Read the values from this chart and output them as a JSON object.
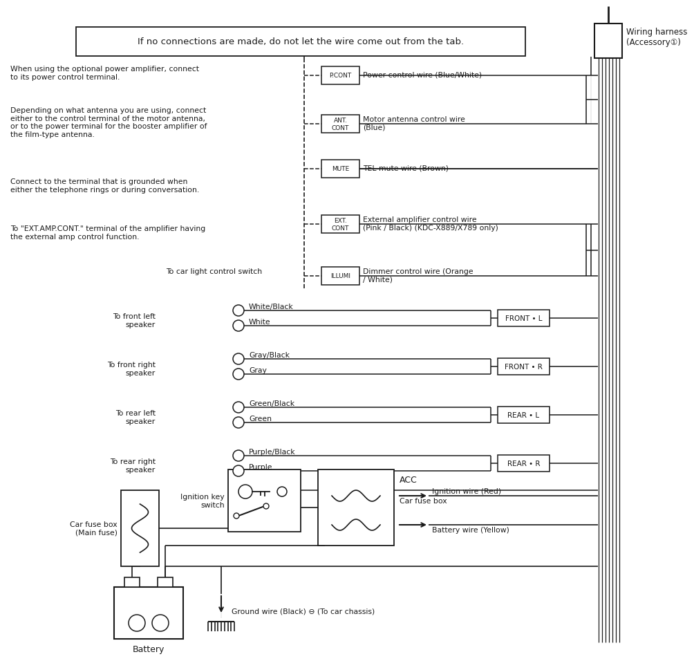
{
  "bg_color": "#ffffff",
  "text_color": "#1a1a1a",
  "line_color": "#1a1a1a",
  "fig_width": 9.6,
  "fig_height": 9.5,
  "notice_box": "If no connections are made, do not let the wire come out from the tab.",
  "left_notes": [
    "When using the optional power amplifier, connect\nto its power control terminal.",
    "Depending on what antenna you are using, connect\neither to the control terminal of the motor antenna,\nor to the power terminal for the booster amplifier of\nthe film-type antenna.",
    "Connect to the terminal that is grounded when\neither the telephone rings or during conversation.",
    "To \"EXT.AMP.CONT.\" terminal of the amplifier having\nthe external amp control function.",
    "To car light control switch"
  ],
  "ctrl_labels": [
    "P.CONT",
    "ANT.\nCONT",
    "MUTE",
    "EXT.\nCONT",
    "ILLUMI"
  ],
  "ctrl_wires": [
    "Power control wire (Blue/White)",
    "Motor antenna control wire\n(Blue)",
    "TEL mute wire (Brown)",
    "External amplifier control wire\n(Pink / Black) (KDC-X889/X789 only)",
    "Dimmer control wire (Orange\n/ White)"
  ],
  "spk_labels": [
    "To front left\nspeaker",
    "To front right\nspeaker",
    "To rear left\nspeaker",
    "To rear right\nspeaker"
  ],
  "spk_neg": [
    "White/Black",
    "Gray/Black",
    "Green/Black",
    "Purple/Black"
  ],
  "spk_pos": [
    "White",
    "Gray",
    "Green",
    "Purple"
  ],
  "spk_conn": [
    "FRONT • L",
    "FRONT • R",
    "REAR • L",
    "REAR • R"
  ],
  "bot": {
    "ign_key": "Ignition key\nswitch",
    "fuse_main": "Car fuse box\n(Main fuse)",
    "fuse_acc": "Car fuse box",
    "acc": "ACC",
    "ign_wire": "Ignition wire (Red)",
    "bat_wire": "Battery wire (Yellow)",
    "gnd_wire": "Ground wire (Black) ⊖ (To car chassis)",
    "battery": "Battery"
  },
  "harness": "Wiring harness\n(Accessory①)"
}
